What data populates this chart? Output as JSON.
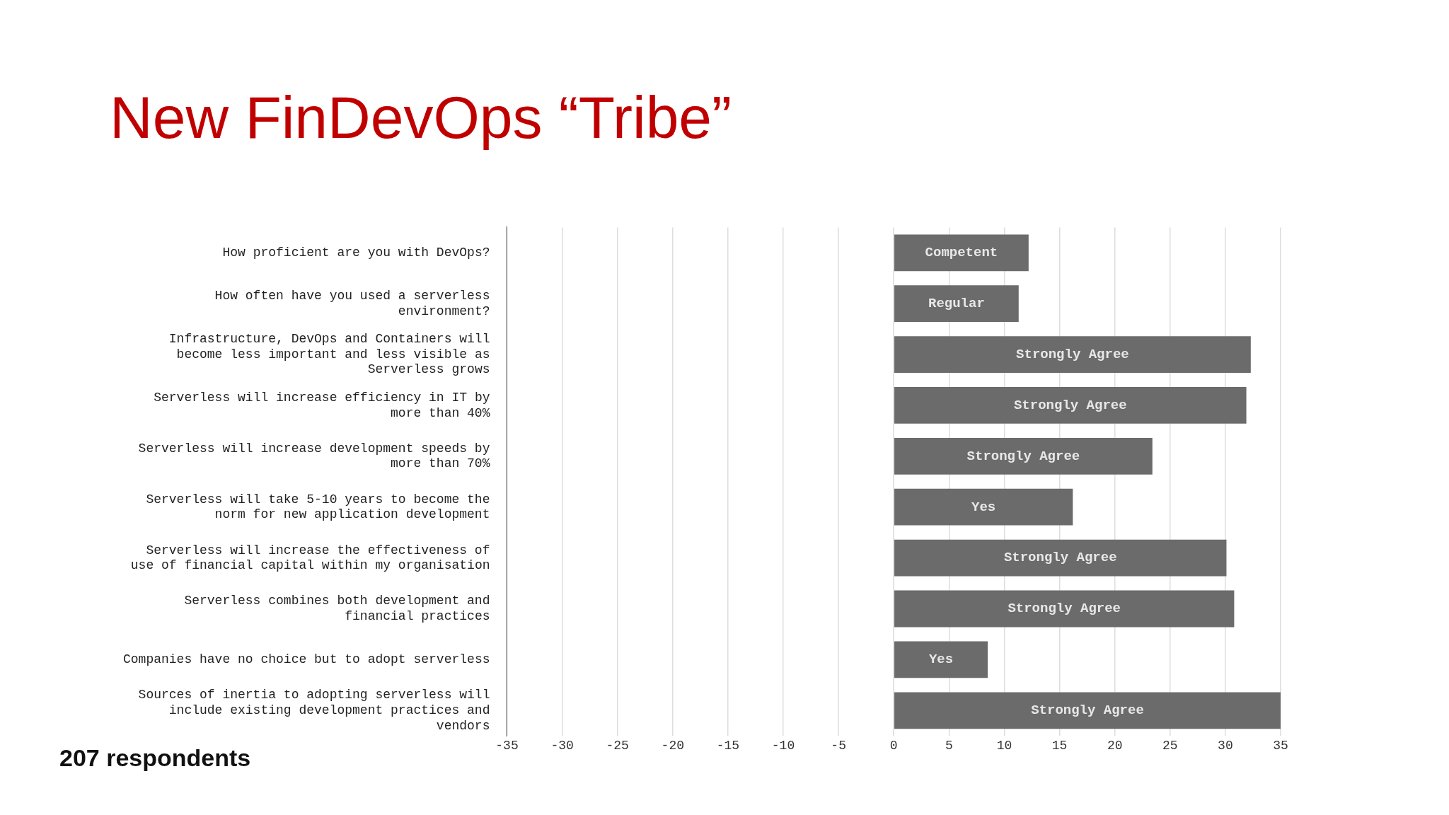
{
  "chart_data": {
    "type": "bar",
    "orientation": "horizontal",
    "title": "New FinDevOps “Tribe”",
    "categories": [
      "How proficient are you with DevOps?",
      "How often have you used a serverless environment?",
      "Infrastructure, DevOps and Containers will become less important and less visible as Serverless grows",
      "Serverless will increase efficiency in IT by more than 40%",
      "Serverless will increase development speeds by more than 70%",
      "Serverless will take 5-10 years to become the norm for new application development",
      "Serverless will increase the effectiveness of use of financial capital within my organisation",
      "Serverless combines both development and financial practices",
      "Companies have no choice but to adopt serverless",
      "Sources of inertia to adopting serverless will include existing development practices and vendors"
    ],
    "values": [
      12.2,
      11.3,
      32.3,
      31.9,
      23.4,
      16.2,
      30.1,
      30.8,
      8.5,
      35
    ],
    "value_labels": [
      "Competent",
      "Regular",
      "Strongly Agree",
      "Strongly Agree",
      "Strongly Agree",
      "Yes",
      "Strongly Agree",
      "Strongly Agree",
      "Yes",
      "Strongly Agree"
    ],
    "color": "#6b6b6b",
    "xlim": [
      -35,
      35
    ],
    "xticks": [
      -35,
      -30,
      -25,
      -20,
      -15,
      -10,
      -5,
      0,
      5,
      10,
      15,
      20,
      25,
      30,
      35
    ],
    "grid": "x",
    "legend": false,
    "annotations": [
      "207 respondents"
    ]
  }
}
